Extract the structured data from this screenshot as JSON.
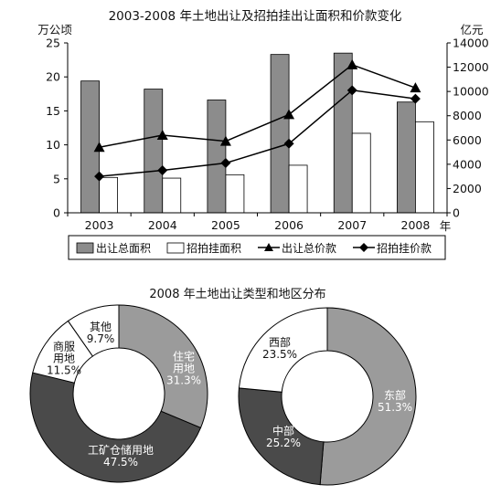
{
  "chart_data": [
    {
      "type": "bar+line",
      "title": "2003-2008 年土地出让及招拍挂出让面积和价款变化",
      "ylabel_left": "万公顷",
      "ylabel_right": "亿元",
      "xunit": "年",
      "categories": [
        "2003",
        "2004",
        "2005",
        "2006",
        "2007",
        "2008"
      ],
      "ylim_left": [
        0,
        25
      ],
      "yticks_left": [
        "0",
        "5",
        "10",
        "15",
        "20",
        "25"
      ],
      "ylim_right": [
        0,
        14000
      ],
      "yticks_right": [
        "0",
        "2000",
        "4000",
        "6000",
        "8000",
        "10000",
        "12000",
        "14000"
      ],
      "series": [
        {
          "name": "出让总面积",
          "kind": "bar",
          "axis": "left",
          "color": "#8c8c8c",
          "values": [
            19.4,
            18.2,
            16.6,
            23.3,
            23.5,
            16.3
          ]
        },
        {
          "name": "招拍挂面积",
          "kind": "bar",
          "axis": "left",
          "color": "#ffffff",
          "values": [
            5.2,
            5.1,
            5.6,
            7.0,
            11.7,
            13.4
          ]
        },
        {
          "name": "出让总价款",
          "kind": "line",
          "marker": "triangle",
          "axis": "right",
          "values": [
            5400,
            6400,
            5900,
            8100,
            12200,
            10300
          ]
        },
        {
          "name": "招拍挂价款",
          "kind": "line",
          "marker": "diamond",
          "axis": "right",
          "values": [
            3000,
            3500,
            4100,
            5700,
            10100,
            9400
          ]
        }
      ],
      "legend_position": "bottom"
    },
    {
      "type": "pie",
      "title": "2008 年土地出让类型和地区分布",
      "charts": [
        {
          "slices": [
            {
              "label": [
                "住宅",
                "用地"
              ],
              "pct": "31.3%",
              "value": 31.3,
              "color": "#9b9b9b",
              "text_color": "#ffffff"
            },
            {
              "label": [
                "工矿仓储用地"
              ],
              "pct": "47.5%",
              "value": 47.5,
              "color": "#4a4a4a",
              "text_color": "#ffffff"
            },
            {
              "label": [
                "商服",
                "用地"
              ],
              "pct": "11.5%",
              "value": 11.5,
              "color": "#ffffff",
              "text_color": "#111111"
            },
            {
              "label": [
                "其他"
              ],
              "pct": "9.7%",
              "value": 9.7,
              "color": "#ffffff",
              "text_color": "#111111"
            }
          ]
        },
        {
          "slices": [
            {
              "label": [
                "东部"
              ],
              "pct": "51.3%",
              "value": 51.3,
              "color": "#9b9b9b",
              "text_color": "#ffffff"
            },
            {
              "label": [
                "中部"
              ],
              "pct": "25.2%",
              "value": 25.2,
              "color": "#4a4a4a",
              "text_color": "#ffffff"
            },
            {
              "label": [
                "西部"
              ],
              "pct": "23.5%",
              "value": 23.5,
              "color": "#ffffff",
              "text_color": "#111111"
            }
          ]
        }
      ]
    }
  ]
}
